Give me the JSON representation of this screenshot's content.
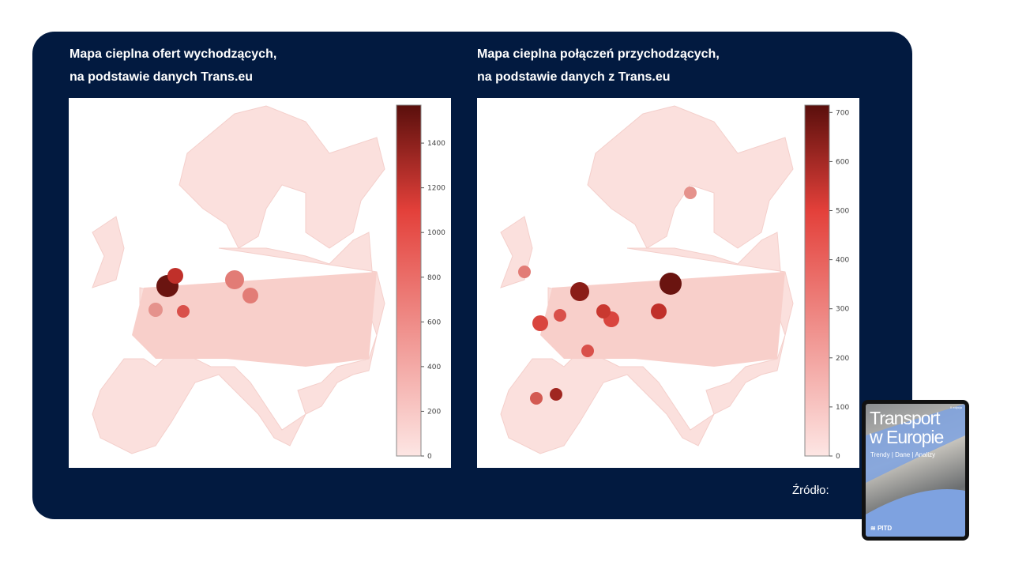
{
  "left": {
    "title_line1": "Mapa cieplna ofert wychodzących,",
    "title_line2": "na podstawie danych Trans.eu",
    "chart_data": {
      "type": "heatmap",
      "title": "",
      "colorbar": {
        "min": 0,
        "max": 1570,
        "ticks": [
          "0",
          "200",
          "400",
          "600",
          "800",
          "1000",
          "1200",
          "1400"
        ]
      },
      "colormap": "Reds",
      "hotspots": [
        "Benelux / western Germany (~1500)",
        "Poland (~700)"
      ]
    }
  },
  "right": {
    "title_line1": "Mapa cieplna połączeń przychodzących,",
    "title_line2": "na podstawie danych z Trans.eu",
    "chart_data": {
      "type": "heatmap",
      "title": "",
      "colorbar": {
        "min": 0,
        "max": 715,
        "ticks": [
          "0",
          "100",
          "200",
          "300",
          "400",
          "500",
          "600",
          "700"
        ]
      },
      "colormap": "Reds",
      "hotspots": [
        "central Poland (~700)",
        "Benelux (~650)",
        "southern Germany (~450)",
        "France (~400)"
      ]
    }
  },
  "source_label": "Źródło:",
  "publication": {
    "title_line1": "Transport",
    "title_line2": "w Europie",
    "subtitle": "Trendy | Dane | Analizy",
    "edition": "II edycja",
    "brand": "PITD"
  },
  "colors": {
    "panel": "#021a40",
    "low": "#fde6e4",
    "mid": "#e3403a",
    "high": "#5a0f0c"
  }
}
